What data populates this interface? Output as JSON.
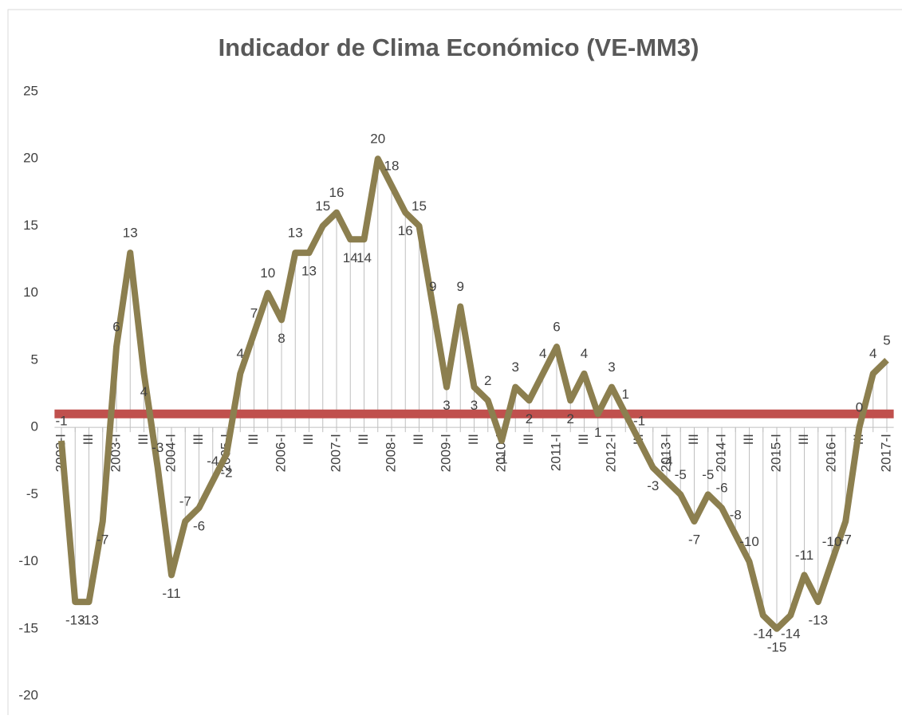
{
  "chart_data": {
    "type": "line",
    "title": "Indicador de Clima Económico (VE-MM3)",
    "categories": [
      "2002-I",
      null,
      "III",
      null,
      "2003-I",
      null,
      "III",
      null,
      "2004-I",
      null,
      "III",
      null,
      "2005-I",
      null,
      "III",
      null,
      "2006-I",
      null,
      "III",
      null,
      "2007-I",
      null,
      "III",
      null,
      "2008-I",
      null,
      "III",
      null,
      "2009-I",
      null,
      "III",
      null,
      "2010-I",
      null,
      "III",
      null,
      "2011-I",
      null,
      "III",
      null,
      "2012-I",
      null,
      "III",
      null,
      "2013-I",
      null,
      "III",
      null,
      "2014-I",
      null,
      "III",
      null,
      "2015-I",
      null,
      "III",
      null,
      "2016-I",
      null,
      "III",
      null,
      "2017-I"
    ],
    "series": [
      {
        "color": "#8c7f4f",
        "values": [
          -1,
          -13,
          -13,
          -7,
          6,
          13,
          4,
          -3,
          -11,
          -7,
          -6,
          -4,
          -2,
          4,
          7,
          10,
          8,
          13,
          13,
          15,
          16,
          14,
          14,
          20,
          18,
          16,
          15,
          9,
          3,
          9,
          3,
          2,
          -1,
          3,
          2,
          4,
          6,
          2,
          4,
          1,
          3,
          1,
          -1,
          -3,
          -4,
          -5,
          -7,
          -5,
          -6,
          -8,
          -10,
          -14,
          -15,
          -14,
          -11,
          -13,
          -10,
          -7,
          0,
          4,
          5
        ]
      }
    ],
    "reference_line": {
      "value": 1,
      "color": "#c0504d"
    },
    "ylim": [
      -20,
      25
    ],
    "yticks": [
      -20,
      -15,
      -10,
      -5,
      0,
      5,
      10,
      15,
      20,
      25
    ],
    "drop_lines": true
  }
}
